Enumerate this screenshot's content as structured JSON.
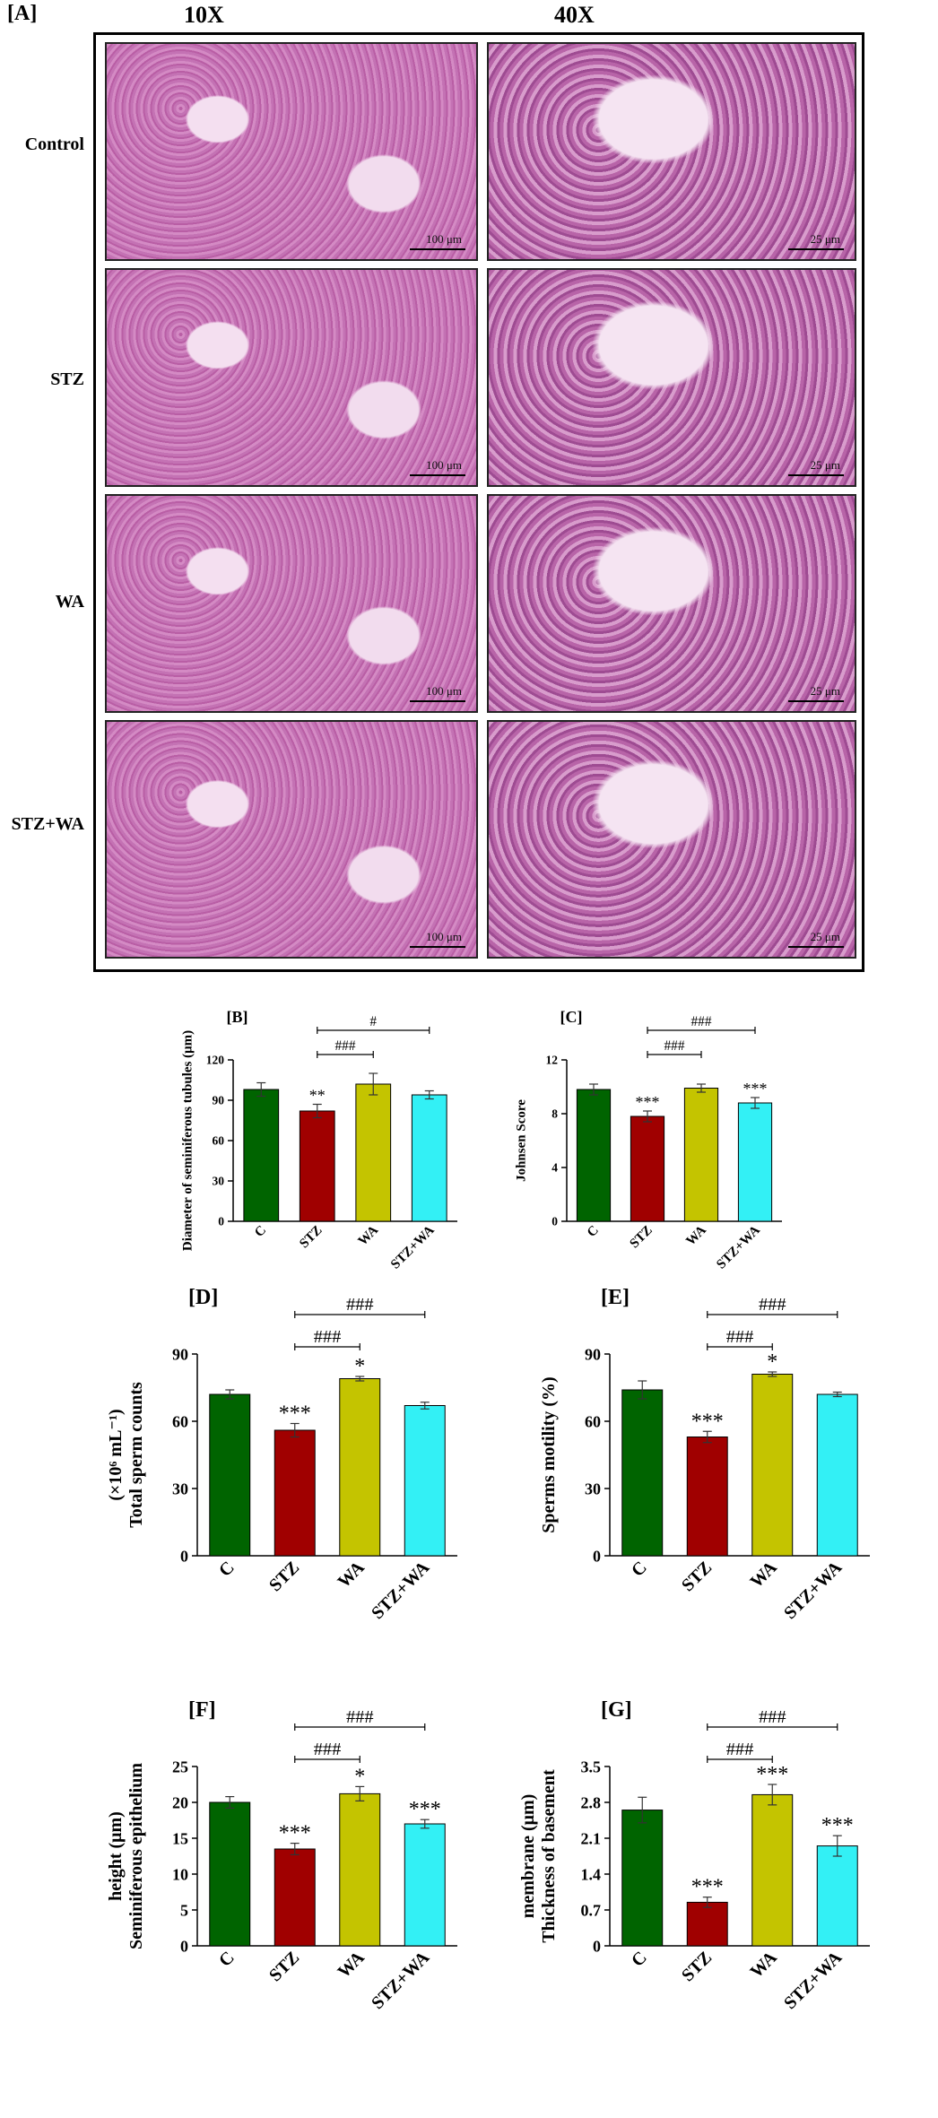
{
  "panel_A": {
    "label": "[A]",
    "col_headers": [
      "10X",
      "40X"
    ],
    "rows": [
      "Control",
      "STZ",
      "WA",
      "STZ+WA"
    ],
    "scale_10x": "100 μm",
    "scale_40x": "25 μm"
  },
  "colors": {
    "C": "#006400",
    "STZ": "#a00000",
    "WA": "#c4c400",
    "STZ+WA": "#33f0f5"
  },
  "chart_data": [
    {
      "id": "B",
      "label": "[B]",
      "type": "bar",
      "categories": [
        "C",
        "STZ",
        "WA",
        "STZ+WA"
      ],
      "values": [
        98,
        82,
        102,
        94
      ],
      "errors": [
        5,
        5,
        8,
        3
      ],
      "annotations": [
        "",
        "**",
        "",
        ""
      ],
      "ylabel": "Diameter of seminiferous tubules (μm)",
      "ylim": [
        0,
        120
      ],
      "yticks": [
        0,
        30,
        60,
        90,
        120
      ],
      "brackets": [
        {
          "from": 1,
          "to": 3,
          "label": "#"
        },
        {
          "from": 1,
          "to": 2,
          "label": "###"
        }
      ]
    },
    {
      "id": "C",
      "label": "[C]",
      "type": "bar",
      "categories": [
        "C",
        "STZ",
        "WA",
        "STZ+WA"
      ],
      "values": [
        9.8,
        7.8,
        9.9,
        8.8
      ],
      "errors": [
        0.4,
        0.4,
        0.3,
        0.4
      ],
      "annotations": [
        "",
        "***",
        "",
        "***"
      ],
      "ylabel": "Johnsen Score",
      "ylim": [
        0,
        12
      ],
      "yticks": [
        0,
        4,
        8,
        12
      ],
      "brackets": [
        {
          "from": 1,
          "to": 3,
          "label": "###"
        },
        {
          "from": 1,
          "to": 2,
          "label": "###"
        }
      ]
    },
    {
      "id": "D",
      "label": "[D]",
      "type": "bar",
      "categories": [
        "C",
        "STZ",
        "WA",
        "STZ+WA"
      ],
      "values": [
        72,
        56,
        79,
        67
      ],
      "errors": [
        2,
        3,
        1,
        1.5
      ],
      "annotations": [
        "",
        "***",
        "*",
        ""
      ],
      "ylabel": "Total sperm counts",
      "ylabel2": "(×10⁶ mL⁻¹)",
      "ylim": [
        0,
        90
      ],
      "yticks": [
        0,
        30,
        60,
        90
      ],
      "brackets": [
        {
          "from": 1,
          "to": 3,
          "label": "###"
        },
        {
          "from": 1,
          "to": 2,
          "label": "###"
        }
      ]
    },
    {
      "id": "E",
      "label": "[E]",
      "type": "bar",
      "categories": [
        "C",
        "STZ",
        "WA",
        "STZ+WA"
      ],
      "values": [
        74,
        53,
        81,
        72
      ],
      "errors": [
        4,
        2.5,
        1,
        1
      ],
      "annotations": [
        "",
        "***",
        "*",
        ""
      ],
      "ylabel": "Sperms motility (%)",
      "ylim": [
        0,
        90
      ],
      "yticks": [
        0,
        30,
        60,
        90
      ],
      "brackets": [
        {
          "from": 1,
          "to": 3,
          "label": "###"
        },
        {
          "from": 1,
          "to": 2,
          "label": "###"
        }
      ]
    },
    {
      "id": "F",
      "label": "[F]",
      "type": "bar",
      "categories": [
        "C",
        "STZ",
        "WA",
        "STZ+WA"
      ],
      "values": [
        20,
        13.5,
        21.2,
        17
      ],
      "errors": [
        0.8,
        0.8,
        1.0,
        0.6
      ],
      "annotations": [
        "",
        "***",
        "*",
        "***"
      ],
      "ylabel": "Seminiferous epithelium",
      "ylabel2": "height (μm)",
      "ylim": [
        0,
        25
      ],
      "yticks": [
        0,
        5,
        10,
        15,
        20,
        25
      ],
      "brackets": [
        {
          "from": 1,
          "to": 3,
          "label": "###"
        },
        {
          "from": 1,
          "to": 2,
          "label": "###"
        }
      ]
    },
    {
      "id": "G",
      "label": "[G]",
      "type": "bar",
      "categories": [
        "C",
        "STZ",
        "WA",
        "STZ+WA"
      ],
      "values": [
        2.65,
        0.85,
        2.95,
        1.95
      ],
      "errors": [
        0.25,
        0.1,
        0.2,
        0.2
      ],
      "annotations": [
        "",
        "***",
        "***",
        "***"
      ],
      "ylabel": "Thickness of basement",
      "ylabel2": "membrane (μm)",
      "ylim": [
        0,
        3.5
      ],
      "yticks": [
        0,
        0.7,
        1.4,
        2.1,
        2.8,
        3.5
      ],
      "brackets": [
        {
          "from": 1,
          "to": 3,
          "label": "###"
        },
        {
          "from": 1,
          "to": 2,
          "label": "###"
        }
      ]
    }
  ]
}
